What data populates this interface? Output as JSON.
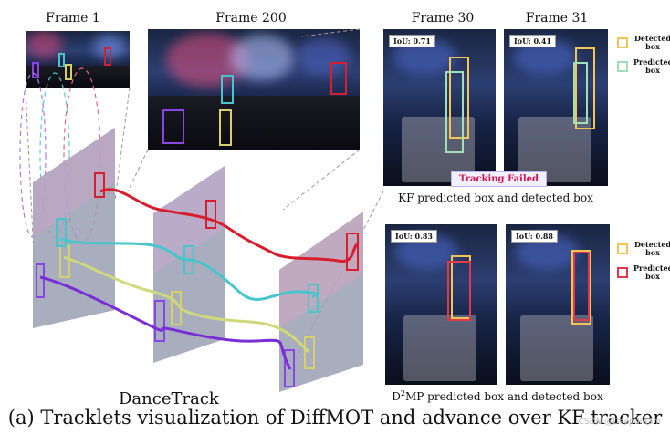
{
  "frames": {
    "frame1": "Frame 1",
    "frame200": "Frame 200",
    "frame30": "Frame 30",
    "frame31": "Frame 31"
  },
  "kf_panel": {
    "iou_30": "IoU: 0.71",
    "iou_31": "IoU: 0.41",
    "failed_label": "Tracking Failed",
    "caption": "KF predicted box and detected box"
  },
  "d2mp_panel": {
    "iou_30": "IoU: 0.83",
    "iou_31": "IoU: 0.88",
    "caption_prefix": "D",
    "caption_sup": "2",
    "caption_suffix": "MP predicted box and detected box"
  },
  "legend": {
    "detected": "Detected box",
    "predicted_kf": "Predicted box",
    "predicted_d2mp": "Predicted box"
  },
  "dataset_label": "DanceTrack",
  "figure_caption": "(a) Tracklets visualization of DiffMOT and advance over KF tracker",
  "watermark": "CSDN @Deepdream",
  "colors": {
    "detected": "#f5c453",
    "predicted_kf": "#9fe0b4",
    "predicted_d2mp": "#e2384a",
    "track_red": "#d81e2d",
    "track_cyan": "#46c6cc",
    "track_yellow": "#cfd97a",
    "track_purple": "#7a2fd6"
  }
}
